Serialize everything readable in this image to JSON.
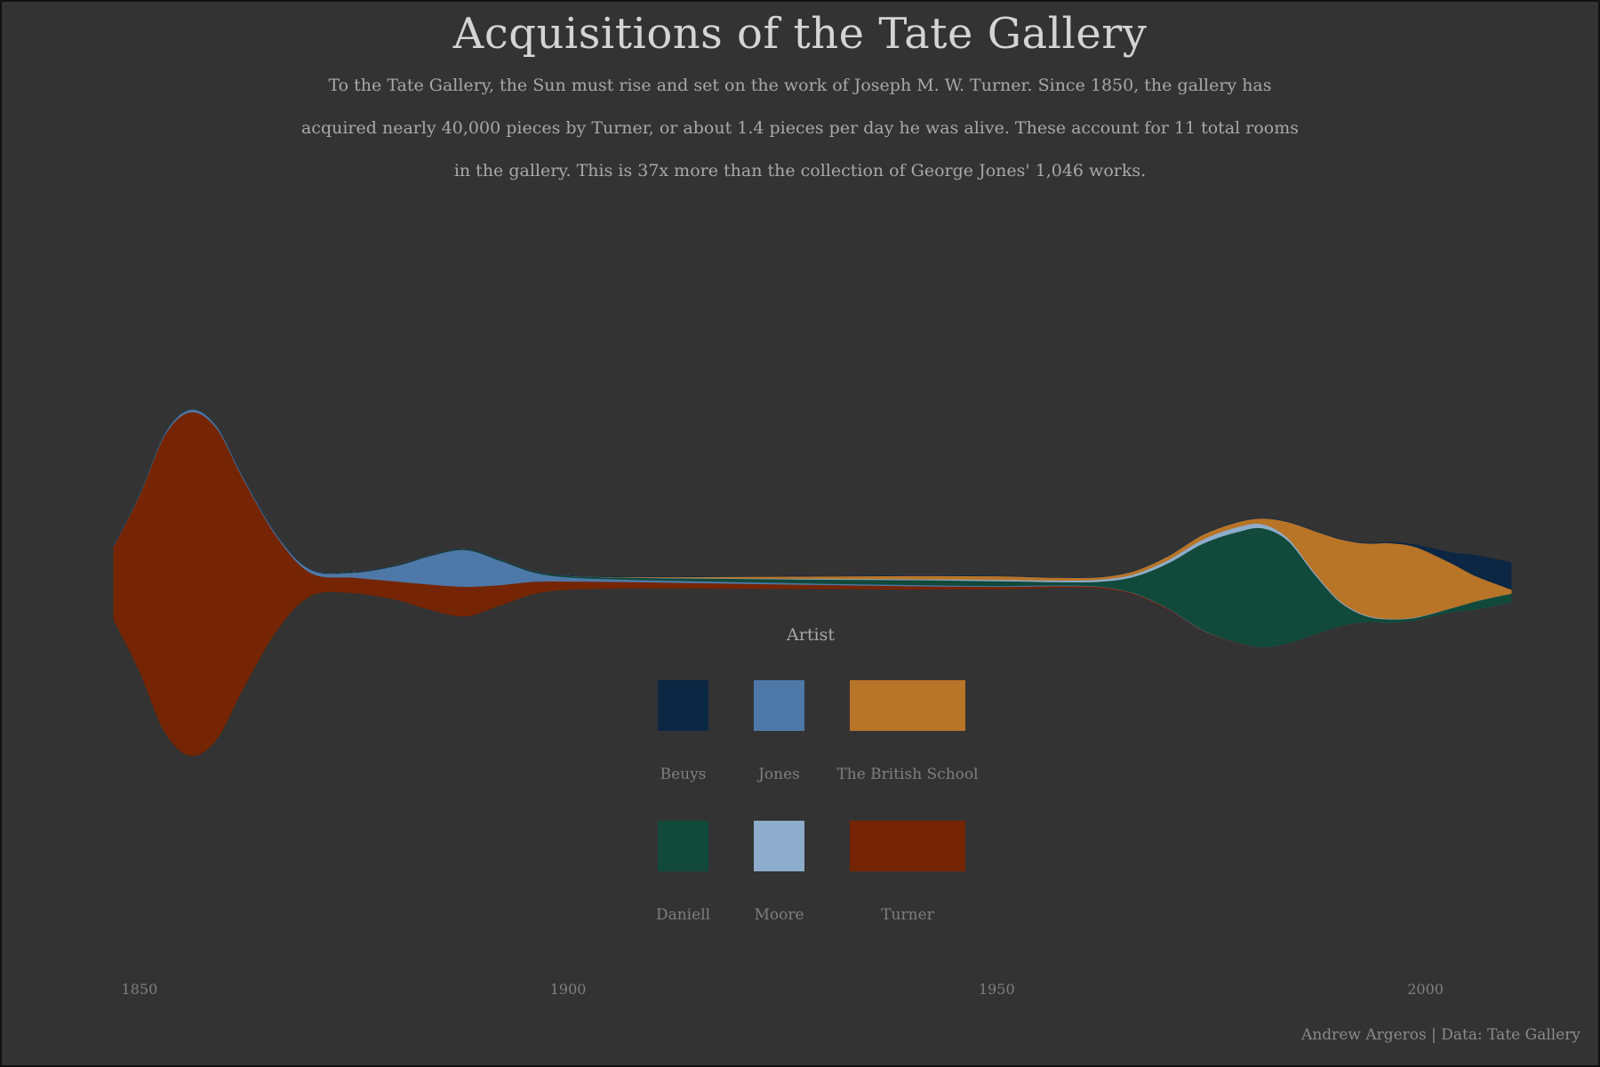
{
  "title": "Acquisitions of the Tate Gallery",
  "subtitle": "To the Tate Gallery, the Sun must rise and set on the work of Joseph M. W. Turner. Since 1850, the gallery has acquired nearly 40,000 pieces by Turner, or about 1.4 pieces per day he was alive. These account for 11 total rooms in the gallery. This is 37x more than the collection of George Jones' 1,046 works.",
  "caption": "Andrew Argeros | Data: Tate Gallery",
  "legend": {
    "title": "Artist",
    "items": [
      {
        "name": "Beuys",
        "color": "#0b2744"
      },
      {
        "name": "Jones",
        "color": "#4e78a8"
      },
      {
        "name": "The British School",
        "color": "#b87427"
      },
      {
        "name": "Daniell",
        "color": "#11493b"
      },
      {
        "name": "Moore",
        "color": "#8eaccb"
      },
      {
        "name": "Turner",
        "color": "#752503"
      }
    ]
  },
  "chart_data": {
    "type": "area",
    "layout": "streamgraph",
    "x_ticks": [
      1850,
      1900,
      1950,
      2000
    ],
    "xlim": [
      1847,
      2010
    ],
    "x": [
      1847,
      1850,
      1853,
      1856,
      1859,
      1862,
      1866,
      1870,
      1875,
      1880,
      1884,
      1888,
      1892,
      1896,
      1900,
      1906,
      1912,
      1920,
      1930,
      1940,
      1950,
      1957,
      1962,
      1966,
      1970,
      1974,
      1978,
      1981,
      1984,
      1987,
      1990,
      1993,
      1996,
      1999,
      2003,
      2006,
      2010
    ],
    "series": [
      {
        "name": "Turner",
        "color": "#752503",
        "values": [
          180,
          430,
          730,
          840,
          760,
          520,
          230,
          55,
          38,
          45,
          62,
          72,
          50,
          30,
          20,
          16,
          14,
          12,
          10,
          8,
          6,
          4,
          3,
          2,
          2,
          1,
          1,
          0,
          0,
          0,
          0,
          0,
          0,
          0,
          0,
          0,
          0
        ]
      },
      {
        "name": "Jones",
        "color": "#4e78a8",
        "values": [
          1,
          2,
          4,
          6,
          5,
          4,
          4,
          8,
          12,
          38,
          70,
          90,
          60,
          22,
          10,
          6,
          5,
          4,
          3,
          3,
          2,
          2,
          1,
          1,
          1,
          1,
          0,
          0,
          0,
          0,
          0,
          0,
          0,
          0,
          0,
          0,
          0
        ]
      },
      {
        "name": "Daniell",
        "color": "#11493b",
        "values": [
          0,
          0,
          0,
          0,
          0,
          0,
          0,
          0,
          1,
          1,
          1,
          2,
          2,
          3,
          4,
          5,
          6,
          8,
          10,
          12,
          12,
          8,
          12,
          40,
          110,
          210,
          270,
          290,
          250,
          150,
          60,
          15,
          8,
          6,
          10,
          20,
          22
        ]
      },
      {
        "name": "Moore",
        "color": "#8eaccb",
        "values": [
          0,
          0,
          0,
          0,
          0,
          0,
          0,
          0,
          0,
          0,
          0,
          0,
          0,
          0,
          0,
          0,
          1,
          1,
          2,
          2,
          3,
          4,
          5,
          6,
          8,
          10,
          12,
          10,
          6,
          4,
          3,
          2,
          1,
          1,
          0,
          0,
          0
        ]
      },
      {
        "name": "The British School",
        "color": "#b87427",
        "values": [
          0,
          0,
          0,
          0,
          0,
          0,
          0,
          0,
          0,
          0,
          0,
          0,
          0,
          0,
          0,
          1,
          2,
          4,
          6,
          8,
          9,
          7,
          6,
          8,
          10,
          12,
          12,
          14,
          40,
          100,
          150,
          175,
          185,
          170,
          110,
          60,
          10
        ]
      },
      {
        "name": "Beuys",
        "color": "#0b2744",
        "values": [
          0,
          0,
          0,
          0,
          0,
          0,
          0,
          0,
          0,
          0,
          0,
          0,
          0,
          0,
          0,
          0,
          0,
          0,
          0,
          0,
          0,
          0,
          0,
          0,
          0,
          0,
          0,
          0,
          0,
          0,
          0,
          0,
          1,
          5,
          25,
          50,
          65
        ]
      }
    ]
  }
}
